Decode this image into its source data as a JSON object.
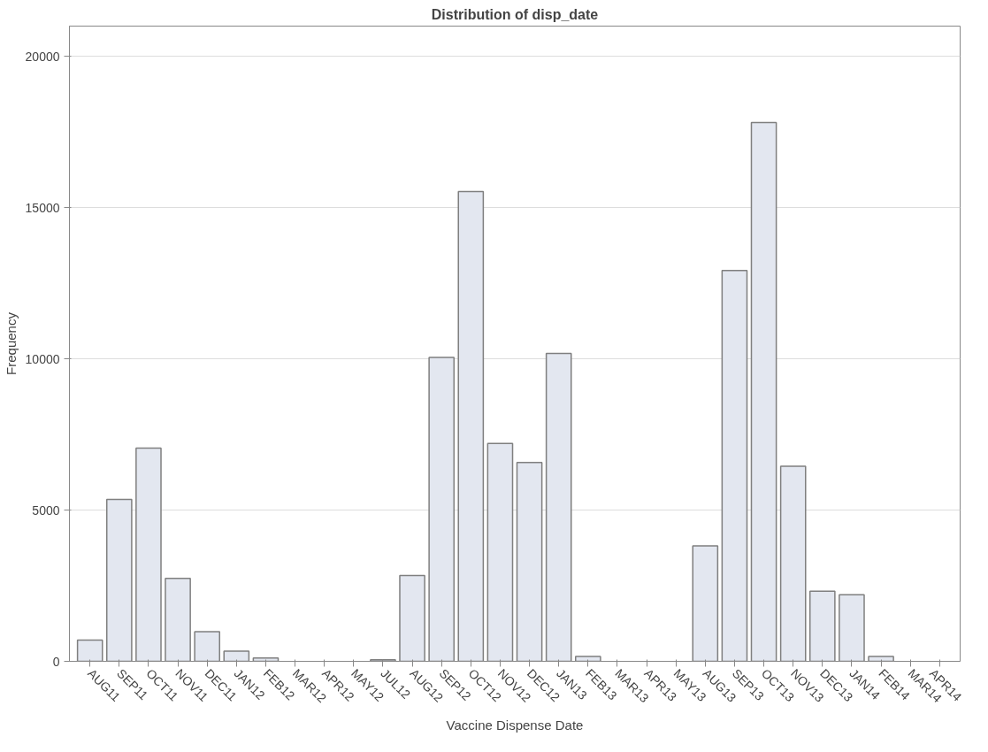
{
  "chart_data": {
    "type": "bar",
    "title": "Distribution of disp_date",
    "xlabel": "Vaccine Dispense Date",
    "ylabel": "Frequency",
    "categories": [
      "AUG11",
      "SEP11",
      "OCT11",
      "NOV11",
      "DEC11",
      "JAN12",
      "FEB12",
      "MAR12",
      "APR12",
      "MAY12",
      "JUL12",
      "AUG12",
      "SEP12",
      "OCT12",
      "NOV12",
      "DEC12",
      "JAN13",
      "FEB13",
      "MAR13",
      "APR13",
      "MAY13",
      "AUG13",
      "SEP13",
      "OCT13",
      "NOV13",
      "DEC13",
      "JAN14",
      "FEB14",
      "MAR14",
      "APR14"
    ],
    "values": [
      700,
      5350,
      7050,
      2740,
      980,
      340,
      110,
      null,
      null,
      null,
      50,
      2840,
      10050,
      15530,
      7200,
      6570,
      10180,
      160,
      null,
      null,
      null,
      3820,
      12920,
      17810,
      6450,
      2320,
      2200,
      160,
      null,
      null
    ],
    "color": "#e3e7f0",
    "ylim": [
      0,
      21000
    ],
    "yticks": [
      0,
      5000,
      10000,
      15000,
      20000
    ],
    "grid": "y"
  }
}
